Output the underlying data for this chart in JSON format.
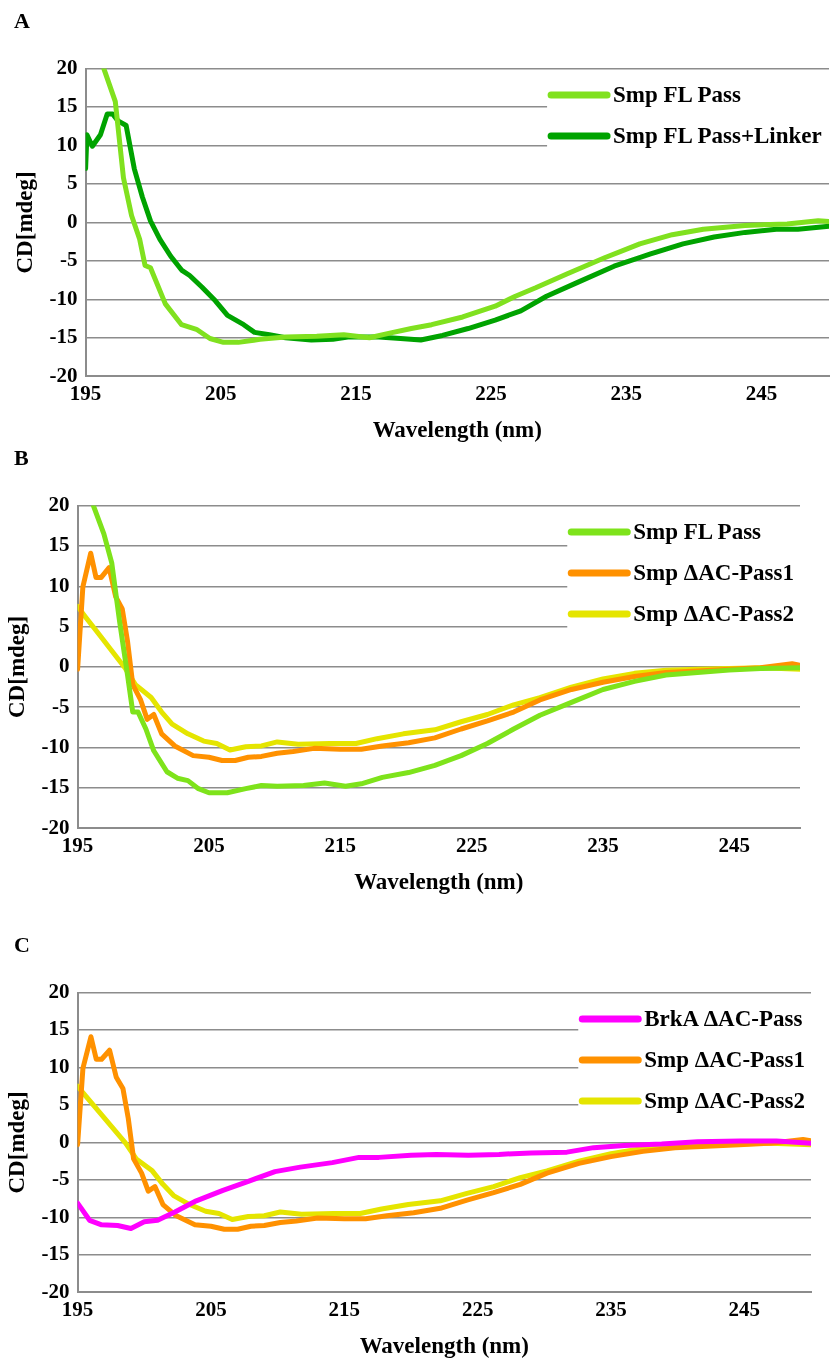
{
  "chart_data": [
    {
      "type": "line",
      "title": "A",
      "xlabel": "Wavelength (nm)",
      "ylabel": "CD[mdeg]",
      "xlim": [
        195,
        250
      ],
      "xticks": [
        195,
        205,
        215,
        225,
        235,
        245
      ],
      "ylim": [
        -20,
        20
      ],
      "yticks": [
        -20,
        -15,
        -10,
        -5,
        0,
        5,
        10,
        15,
        20
      ],
      "grid": "y",
      "legend": "top right",
      "marker": "none",
      "line_style": "solid",
      "series": [
        {
          "name": "Smp FL Pass",
          "color": "#80e11f",
          "x": [
            196.35,
            197.2,
            197.8,
            198.4,
            199.0,
            199.4,
            199.8,
            200.9,
            202.1,
            203.2,
            204.2,
            205.2,
            206.3,
            207.9,
            209.8,
            212.1,
            214.1,
            216.0,
            217.5,
            219.1,
            220.6,
            222.9,
            225.3,
            226.8,
            228.3,
            230.6,
            233.4,
            236.0,
            238.4,
            240.7,
            243.8,
            246.9,
            249.2,
            250
          ],
          "values": [
            20,
            15.7,
            5.8,
            0.9,
            -2.2,
            -5.6,
            -5.9,
            -10.6,
            -13.3,
            -13.9,
            -15.1,
            -15.6,
            -15.6,
            -15.2,
            -14.9,
            -14.8,
            -14.6,
            -15.0,
            -14.4,
            -13.8,
            -13.3,
            -12.3,
            -10.9,
            -9.6,
            -8.5,
            -6.7,
            -4.6,
            -2.8,
            -1.6,
            -0.9,
            -0.4,
            -0.2,
            0.2,
            0.1
          ]
        },
        {
          "name": "Smp FL Pass+Linker",
          "color": "#00a300",
          "x": [
            195.0,
            195.1,
            195.5,
            196.1,
            196.6,
            197.0,
            197.4,
            198.0,
            198.6,
            199.2,
            199.8,
            200.5,
            201.3,
            202.1,
            202.7,
            203.6,
            204.6,
            205.5,
            206.7,
            207.5,
            208.6,
            209.8,
            211.7,
            213.3,
            214.4,
            216.7,
            218.3,
            219.8,
            221.4,
            223.3,
            225.3,
            227.2,
            229.1,
            231.4,
            234.1,
            236.8,
            239.2,
            241.5,
            243.8,
            246.1,
            247.7,
            250
          ],
          "values": [
            7.0,
            11.4,
            9.9,
            11.4,
            14.1,
            14.1,
            13.2,
            12.6,
            7.0,
            3.3,
            0.2,
            -2.2,
            -4.4,
            -6.2,
            -6.9,
            -8.4,
            -10.2,
            -12.1,
            -13.3,
            -14.3,
            -14.6,
            -15.0,
            -15.3,
            -15.2,
            -14.9,
            -14.9,
            -15.1,
            -15.3,
            -14.7,
            -13.8,
            -12.7,
            -11.5,
            -9.6,
            -7.8,
            -5.7,
            -4.1,
            -2.8,
            -1.9,
            -1.3,
            -0.9,
            -0.9,
            -0.5
          ]
        }
      ]
    },
    {
      "type": "line",
      "title": "B",
      "xlabel": "Wavelength (nm)",
      "ylabel": "CD[mdeg]",
      "xlim": [
        195,
        250
      ],
      "xticks": [
        195,
        205,
        215,
        225,
        235,
        245
      ],
      "ylim": [
        -20,
        20
      ],
      "yticks": [
        -20,
        -15,
        -10,
        -5,
        0,
        5,
        10,
        15,
        20
      ],
      "grid": "y",
      "legend": "top right",
      "marker": "none",
      "line_style": "solid",
      "series": [
        {
          "name": "Smp FL Pass",
          "color": "#7ee31b",
          "x": [
            196.2,
            197.0,
            197.6,
            198.2,
            198.8,
            199.2,
            199.6,
            200.2,
            200.8,
            201.8,
            202.6,
            203.4,
            204.2,
            205.0,
            206.4,
            207.8,
            209.0,
            210.2,
            212.2,
            213.8,
            215.4,
            216.6,
            218.2,
            220.2,
            222.2,
            224.2,
            226.2,
            228.2,
            230.2,
            232.6,
            235.0,
            237.4,
            239.8,
            242.2,
            244.6,
            247.0,
            250
          ],
          "values": [
            20,
            16.5,
            12.9,
            5.6,
            -1.0,
            -5.6,
            -5.6,
            -7.7,
            -10.4,
            -13.0,
            -13.8,
            -14.1,
            -15.1,
            -15.6,
            -15.6,
            -15.1,
            -14.7,
            -14.8,
            -14.7,
            -14.4,
            -14.8,
            -14.5,
            -13.7,
            -13.1,
            -12.2,
            -11.0,
            -9.5,
            -7.7,
            -6.0,
            -4.4,
            -2.8,
            -1.8,
            -1.0,
            -0.7,
            -0.4,
            -0.2,
            -0.1
          ]
        },
        {
          "name": "Smp ΔAC-Pass1",
          "color": "#ff9100",
          "x": [
            195.0,
            195.4,
            196.0,
            196.4,
            196.8,
            197.4,
            197.9,
            198.4,
            198.8,
            199.2,
            199.8,
            200.3,
            200.8,
            201.4,
            202.4,
            203.8,
            205.0,
            206.0,
            207.0,
            208.0,
            209.0,
            210.2,
            211.4,
            213.0,
            215.0,
            216.6,
            218.2,
            220.2,
            222.2,
            224.2,
            226.2,
            228.2,
            230.2,
            232.6,
            235.0,
            237.4,
            239.8,
            242.2,
            244.6,
            247.0,
            249.4,
            250
          ],
          "values": [
            -0.3,
            9.9,
            14.1,
            11.1,
            11.1,
            12.3,
            8.7,
            7.2,
            3.2,
            -2.2,
            -4.1,
            -6.5,
            -5.9,
            -8.3,
            -9.8,
            -11.0,
            -11.2,
            -11.6,
            -11.6,
            -11.2,
            -11.1,
            -10.7,
            -10.5,
            -10.1,
            -10.2,
            -10.2,
            -9.8,
            -9.4,
            -8.8,
            -7.7,
            -6.7,
            -5.6,
            -4.1,
            -2.8,
            -1.9,
            -1.2,
            -0.7,
            -0.5,
            -0.3,
            -0.1,
            0.4,
            0.2
          ]
        },
        {
          "name": "Smp ΔAC-Pass2",
          "color": "#e5e500",
          "x": [
            195.0,
            195.6,
            196.6,
            197.6,
            198.6,
            199.4,
            200.6,
            201.4,
            202.2,
            203.4,
            204.6,
            205.6,
            206.6,
            207.8,
            209.0,
            210.2,
            211.8,
            214.2,
            216.2,
            217.8,
            219.8,
            222.2,
            224.2,
            226.2,
            228.2,
            230.2,
            232.6,
            235.0,
            237.4,
            239.8,
            242.2,
            244.6,
            247.0,
            250
          ],
          "values": [
            7.5,
            6.2,
            4.1,
            2.0,
            -0.1,
            -2.2,
            -3.8,
            -5.6,
            -7.1,
            -8.3,
            -9.2,
            -9.5,
            -10.3,
            -9.9,
            -9.8,
            -9.3,
            -9.6,
            -9.5,
            -9.5,
            -8.9,
            -8.3,
            -7.8,
            -6.8,
            -5.9,
            -4.7,
            -3.8,
            -2.5,
            -1.5,
            -0.8,
            -0.4,
            -0.3,
            -0.2,
            -0.1,
            -0.3
          ]
        }
      ]
    },
    {
      "type": "line",
      "title": "C",
      "xlabel": "Wavelength (nm)",
      "ylabel": "CD[mdeg]",
      "xlim": [
        195,
        250
      ],
      "xticks": [
        195,
        205,
        215,
        225,
        235,
        245
      ],
      "ylim": [
        -20,
        20
      ],
      "yticks": [
        -20,
        -15,
        -10,
        -5,
        0,
        5,
        10,
        15,
        20
      ],
      "grid": "y",
      "legend": "top right",
      "marker": "none",
      "line_style": "solid",
      "series": [
        {
          "name": "BrkA ΔAC-Pass",
          "color": "#ff00ff",
          "x": [
            195.0,
            195.9,
            196.8,
            198.0,
            199.0,
            200.0,
            201.0,
            202.3,
            203.9,
            205.9,
            207.8,
            209.8,
            211.7,
            214.1,
            216.1,
            217.6,
            220.0,
            221.9,
            224.3,
            226.6,
            229.0,
            231.7,
            233.7,
            236.0,
            238.8,
            241.5,
            244.7,
            247.4,
            250
          ],
          "values": [
            -8.1,
            -10.4,
            -11.0,
            -11.1,
            -11.5,
            -10.6,
            -10.4,
            -9.3,
            -7.8,
            -6.4,
            -5.2,
            -3.9,
            -3.3,
            -2.7,
            -2.0,
            -2.0,
            -1.7,
            -1.6,
            -1.7,
            -1.6,
            -1.4,
            -1.3,
            -0.7,
            -0.4,
            -0.2,
            0.1,
            0.2,
            0.2,
            -0.1
          ]
        },
        {
          "name": "Smp ΔAC-Pass1",
          "color": "#ff9100",
          "x": [
            195.0,
            195.4,
            196.0,
            196.4,
            196.8,
            197.4,
            197.9,
            198.4,
            198.8,
            199.2,
            199.8,
            200.3,
            200.8,
            201.4,
            202.4,
            203.8,
            205.0,
            206.0,
            207.0,
            208.0,
            209.0,
            210.2,
            211.4,
            213.0,
            215.0,
            216.6,
            218.2,
            220.2,
            222.2,
            224.2,
            226.2,
            228.2,
            230.2,
            232.6,
            235.0,
            237.4,
            239.8,
            242.2,
            244.6,
            247.0,
            249.4,
            250
          ],
          "values": [
            -0.3,
            9.9,
            14.1,
            11.1,
            11.1,
            12.3,
            8.7,
            7.2,
            3.2,
            -2.2,
            -4.1,
            -6.5,
            -5.9,
            -8.3,
            -9.8,
            -11.0,
            -11.2,
            -11.6,
            -11.6,
            -11.2,
            -11.1,
            -10.7,
            -10.5,
            -10.1,
            -10.2,
            -10.2,
            -9.8,
            -9.4,
            -8.8,
            -7.7,
            -6.7,
            -5.6,
            -4.1,
            -2.8,
            -1.9,
            -1.2,
            -0.7,
            -0.5,
            -0.3,
            -0.1,
            0.4,
            0.2
          ]
        },
        {
          "name": "Smp ΔAC-Pass2",
          "color": "#e5e500",
          "x": [
            195.0,
            195.6,
            196.6,
            197.6,
            198.6,
            199.4,
            200.6,
            201.4,
            202.2,
            203.4,
            204.6,
            205.6,
            206.6,
            207.8,
            209.0,
            210.2,
            211.8,
            214.2,
            216.2,
            217.8,
            219.8,
            222.2,
            224.2,
            226.2,
            228.2,
            230.2,
            232.6,
            235.0,
            237.4,
            239.8,
            242.2,
            244.6,
            247.0,
            250
          ],
          "values": [
            7.5,
            6.2,
            4.1,
            2.0,
            -0.1,
            -2.2,
            -3.8,
            -5.6,
            -7.1,
            -8.3,
            -9.2,
            -9.5,
            -10.3,
            -9.9,
            -9.8,
            -9.3,
            -9.6,
            -9.5,
            -9.5,
            -8.9,
            -8.3,
            -7.8,
            -6.8,
            -5.9,
            -4.7,
            -3.8,
            -2.5,
            -1.5,
            -0.8,
            -0.4,
            -0.3,
            -0.2,
            -0.1,
            -0.3
          ]
        }
      ]
    }
  ]
}
